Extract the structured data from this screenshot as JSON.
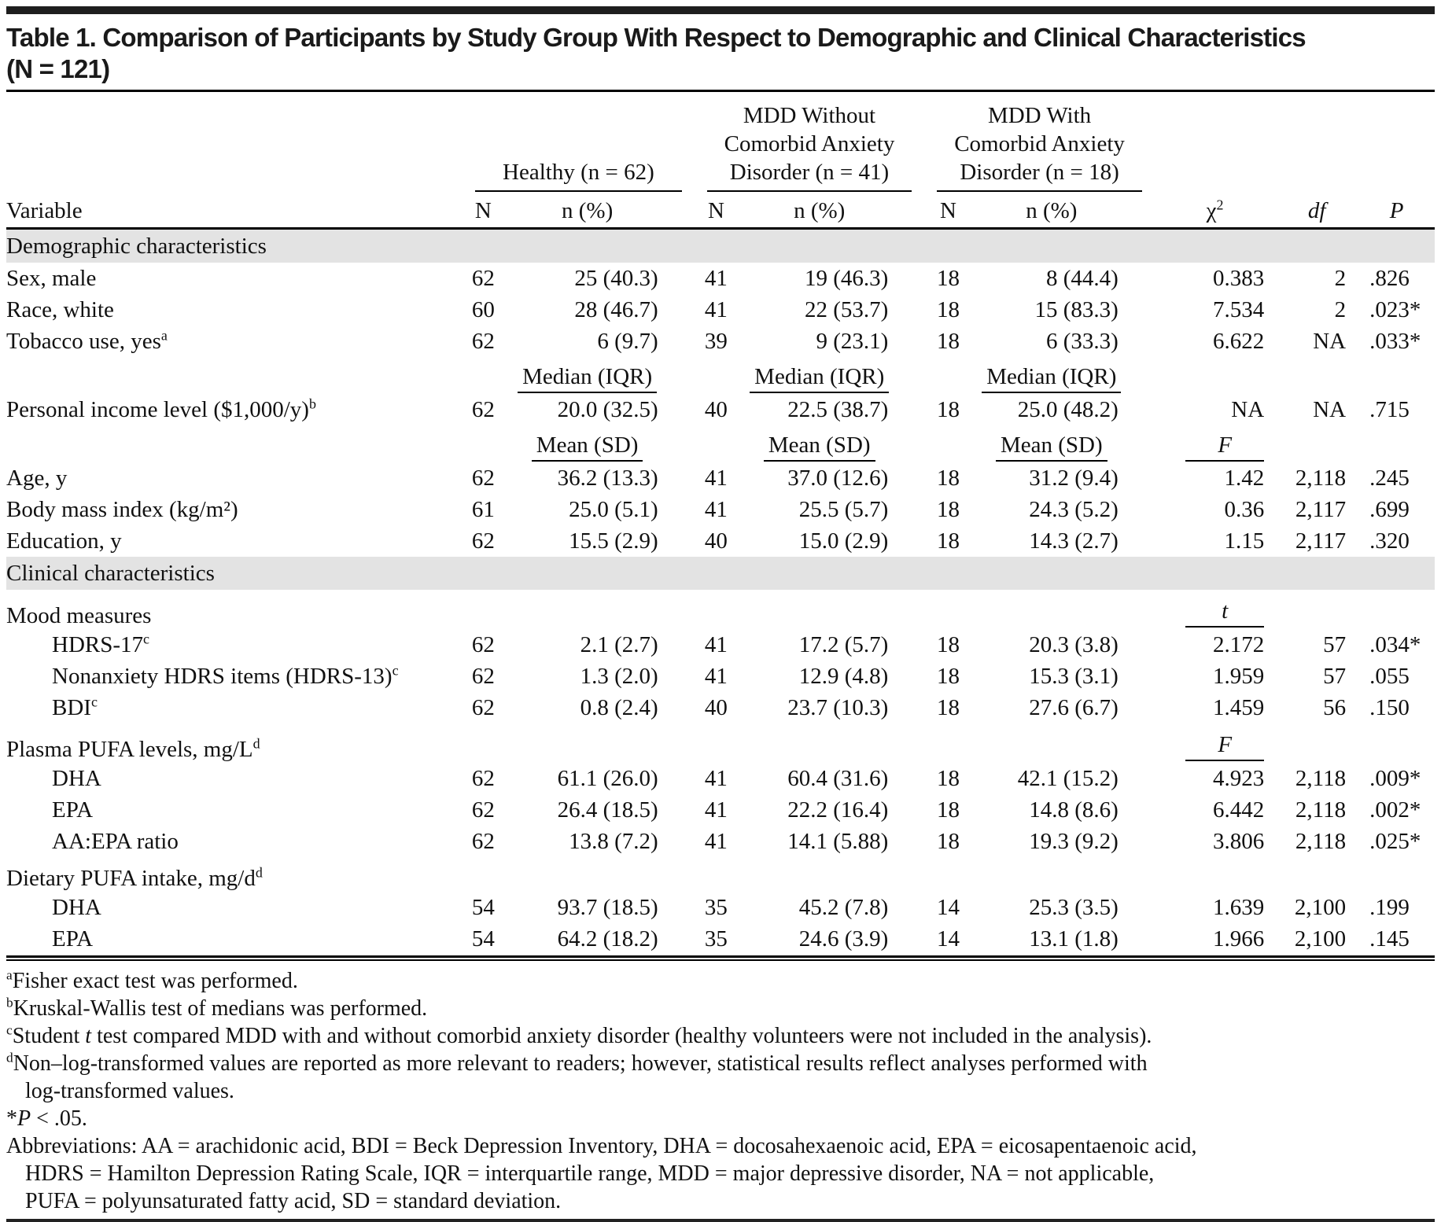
{
  "title_line1": "Table 1. Comparison of Participants by Study Group With Respect to Demographic and Clinical Characteristics",
  "title_line2": "(N = 121)",
  "colors": {
    "rule_black": "#000000",
    "section_band": "#e3e3e3"
  },
  "table": {
    "groups": [
      {
        "label": "Healthy (n = 62)"
      },
      {
        "label": "MDD Without\nComorbid Anxiety\nDisorder (n = 41)"
      },
      {
        "label": "MDD With\nComorbid Anxiety\nDisorder (n = 18)"
      }
    ],
    "columns": {
      "variable": "Variable",
      "n": "N",
      "npct": "n (%)",
      "chi": "χ",
      "chi_sup": "2",
      "df": "df",
      "p": "P"
    },
    "rows": [
      {
        "type": "section",
        "label": "Demographic characteristics"
      },
      {
        "type": "data",
        "label": "Sex, male",
        "sup": "",
        "indent": false,
        "cells": [
          "62",
          "25 (40.3)",
          "41",
          "19 (46.3)",
          "18",
          "8 (44.4)",
          "0.383",
          "2",
          ".826"
        ]
      },
      {
        "type": "data",
        "label": "Race, white",
        "sup": "",
        "indent": false,
        "cells": [
          "60",
          "28 (46.7)",
          "41",
          "22 (53.7)",
          "18",
          "15 (83.3)",
          "7.534",
          "2",
          ".023*"
        ]
      },
      {
        "type": "data",
        "label": "Tobacco use, yes",
        "sup": "a",
        "indent": false,
        "cells": [
          "62",
          "6 (9.7)",
          "39",
          "9 (23.1)",
          "18",
          "6 (33.3)",
          "6.622",
          "NA",
          ".033*"
        ]
      },
      {
        "type": "measure",
        "head": "Median (IQR)",
        "stat": ""
      },
      {
        "type": "data",
        "label": "Personal income level ($1,000/y)",
        "sup": "b",
        "indent": false,
        "cells": [
          "62",
          "20.0 (32.5)",
          "40",
          "22.5 (38.7)",
          "18",
          "25.0 (48.2)",
          "NA",
          "NA",
          ".715"
        ]
      },
      {
        "type": "measure",
        "head": "Mean (SD)",
        "stat": "F"
      },
      {
        "type": "data",
        "label": "Age, y",
        "sup": "",
        "indent": false,
        "cells": [
          "62",
          "36.2 (13.3)",
          "41",
          "37.0 (12.6)",
          "18",
          "31.2 (9.4)",
          "1.42",
          "2,118",
          ".245"
        ]
      },
      {
        "type": "data",
        "label": "Body mass index (kg/m²)",
        "sup": "",
        "indent": false,
        "cells": [
          "61",
          "25.0 (5.1)",
          "41",
          "25.5 (5.7)",
          "18",
          "24.3 (5.2)",
          "0.36",
          "2,117",
          ".699"
        ]
      },
      {
        "type": "data",
        "label": "Education, y",
        "sup": "",
        "indent": false,
        "cells": [
          "62",
          "15.5 (2.9)",
          "40",
          "15.0 (2.9)",
          "18",
          "14.3 (2.7)",
          "1.15",
          "2,117",
          ".320"
        ]
      },
      {
        "type": "section",
        "label": "Clinical characteristics"
      },
      {
        "type": "label",
        "label": "Mood measures",
        "sup": "",
        "stat": "t"
      },
      {
        "type": "data",
        "label": "HDRS-17",
        "sup": "c",
        "indent": true,
        "cells": [
          "62",
          "2.1 (2.7)",
          "41",
          "17.2 (5.7)",
          "18",
          "20.3 (3.8)",
          "2.172",
          "57",
          ".034*"
        ]
      },
      {
        "type": "data",
        "label": "Nonanxiety HDRS items (HDRS-13)",
        "sup": "c",
        "indent": true,
        "cells": [
          "62",
          "1.3 (2.0)",
          "41",
          "12.9 (4.8)",
          "18",
          "15.3 (3.1)",
          "1.959",
          "57",
          ".055"
        ]
      },
      {
        "type": "data",
        "label": "BDI",
        "sup": "c",
        "indent": true,
        "cells": [
          "62",
          "0.8 (2.4)",
          "40",
          "23.7 (10.3)",
          "18",
          "27.6 (6.7)",
          "1.459",
          "56",
          ".150"
        ]
      },
      {
        "type": "label",
        "label": "Plasma PUFA levels, mg/L",
        "sup": "d",
        "stat": "F"
      },
      {
        "type": "data",
        "label": "DHA",
        "sup": "",
        "indent": true,
        "cells": [
          "62",
          "61.1 (26.0)",
          "41",
          "60.4 (31.6)",
          "18",
          "42.1 (15.2)",
          "4.923",
          "2,118",
          ".009*"
        ]
      },
      {
        "type": "data",
        "label": "EPA",
        "sup": "",
        "indent": true,
        "cells": [
          "62",
          "26.4 (18.5)",
          "41",
          "22.2 (16.4)",
          "18",
          "14.8 (8.6)",
          "6.442",
          "2,118",
          ".002*"
        ]
      },
      {
        "type": "data",
        "label": "AA:EPA ratio",
        "sup": "",
        "indent": true,
        "cells": [
          "62",
          "13.8 (7.2)",
          "41",
          "14.1 (5.88)",
          "18",
          "19.3 (9.2)",
          "3.806",
          "2,118",
          ".025*"
        ]
      },
      {
        "type": "label",
        "label": "Dietary PUFA intake, mg/d",
        "sup": "d",
        "stat": ""
      },
      {
        "type": "data",
        "label": "DHA",
        "sup": "",
        "indent": true,
        "cells": [
          "54",
          "93.7 (18.5)",
          "35",
          "45.2 (7.8)",
          "14",
          "25.3 (3.5)",
          "1.639",
          "2,100",
          ".199"
        ]
      },
      {
        "type": "data",
        "label": "EPA",
        "sup": "",
        "indent": true,
        "cells": [
          "54",
          "64.2 (18.2)",
          "35",
          "24.6 (3.9)",
          "14",
          "13.1 (1.8)",
          "1.966",
          "2,100",
          ".145"
        ]
      }
    ]
  },
  "footnotes": [
    {
      "marker": "a",
      "segments": [
        {
          "text": "Fisher exact test was performed."
        }
      ]
    },
    {
      "marker": "b",
      "segments": [
        {
          "text": "Kruskal-Wallis test of medians was performed."
        }
      ]
    },
    {
      "marker": "c",
      "segments": [
        {
          "text": "Student "
        },
        {
          "text": "t",
          "italic": true
        },
        {
          "text": " test compared MDD with and without comorbid anxiety disorder (healthy volunteers were not included in the analysis)."
        }
      ]
    },
    {
      "marker": "d",
      "segments": [
        {
          "text": "Non–log-transformed values are reported as more relevant to readers; however, statistical results reflect analyses performed with\nlog-transformed values."
        }
      ]
    },
    {
      "marker": null,
      "segments": [
        {
          "text": "*"
        },
        {
          "text": "P",
          "italic": true
        },
        {
          "text": " < .05."
        }
      ]
    },
    {
      "marker": null,
      "segments": [
        {
          "text": "Abbreviations: AA = arachidonic acid, BDI = Beck Depression Inventory, DHA = docosahexaenoic acid, EPA = eicosapentaenoic acid,\nHDRS = Hamilton Depression Rating Scale, IQR = interquartile range, MDD = major depressive disorder, NA = not applicable,\nPUFA = polyunsaturated fatty acid, SD = standard deviation."
        }
      ]
    }
  ]
}
